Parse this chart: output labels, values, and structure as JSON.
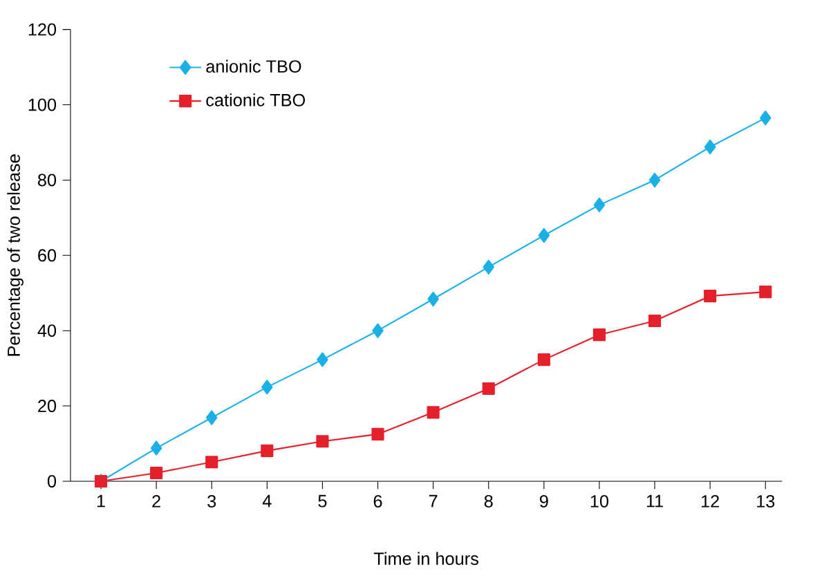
{
  "chart_data": {
    "type": "line",
    "xlabel": "Time in hours",
    "ylabel": "Percentage of two release",
    "categories": [
      "1",
      "2",
      "3",
      "4",
      "5",
      "6",
      "7",
      "8",
      "9",
      "10",
      "11",
      "12",
      "13"
    ],
    "series": [
      {
        "name": "anionic TBO",
        "color": "#1bb1e7",
        "marker": "diamond",
        "values": [
          0,
          8.8,
          16.9,
          25,
          32.3,
          40,
          48.4,
          56.9,
          65.3,
          73.4,
          80,
          88.8,
          96.5
        ]
      },
      {
        "name": "cationic TBO",
        "color": "#e5202a",
        "marker": "square",
        "values": [
          0,
          2.2,
          5.1,
          8.1,
          10.6,
          12.5,
          18.3,
          24.6,
          32.3,
          38.9,
          42.6,
          49.2,
          50.3
        ]
      }
    ],
    "ylim": [
      0,
      120
    ],
    "yticks": [
      0,
      20,
      40,
      60,
      80,
      100,
      120
    ],
    "legend": "top left",
    "grid": false
  }
}
